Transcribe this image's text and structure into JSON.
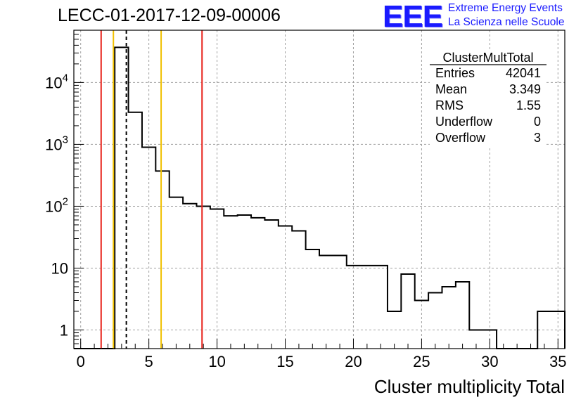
{
  "header": {
    "run_title": "LECC-01-2017-12-09-00006",
    "logo": "EEE",
    "logo_line1": "Extreme Energy Events",
    "logo_line2": "La Scienza nelle Scuole",
    "logo_color": "#1a1aff"
  },
  "stats_box": {
    "title": "ClusterMultTotal",
    "rows": [
      {
        "label": "Entries",
        "value": "42041"
      },
      {
        "label": "Mean",
        "value": "3.349"
      },
      {
        "label": "RMS",
        "value": "1.55"
      },
      {
        "label": "Underflow",
        "value": "0"
      },
      {
        "label": "Overflow",
        "value": "3"
      }
    ]
  },
  "chart_data": {
    "type": "bar",
    "histogram": true,
    "xlabel": "Cluster multiplicity Total",
    "ylabel": "",
    "xlim": [
      -0.5,
      35.5
    ],
    "ylim": [
      0.5,
      70000
    ],
    "log_y": true,
    "grid": true,
    "bin_edges_start": -0.5,
    "bin_width": 1,
    "values": [
      0,
      0,
      0,
      37000,
      3300,
      900,
      370,
      140,
      110,
      100,
      90,
      70,
      72,
      65,
      60,
      48,
      40,
      20,
      16,
      16,
      11,
      11,
      11,
      2,
      8,
      3,
      4,
      5,
      6,
      1,
      1,
      0,
      0,
      0,
      2,
      2
    ],
    "x_ticks": [
      0,
      5,
      10,
      15,
      20,
      25,
      30,
      35
    ],
    "x_tick_labels": [
      "0",
      "5",
      "10",
      "15",
      "20",
      "25",
      "30",
      "35"
    ],
    "y_ticks": [
      1,
      10,
      100,
      1000,
      10000
    ],
    "y_tick_labels": [
      {
        "base": "1",
        "exp": ""
      },
      {
        "base": "10",
        "exp": ""
      },
      {
        "base": "10",
        "exp": "2"
      },
      {
        "base": "10",
        "exp": "3"
      },
      {
        "base": "10",
        "exp": "4"
      }
    ],
    "vertical_lines": [
      {
        "x": 1.5,
        "color": "#e8231c",
        "style": "solid"
      },
      {
        "x": 2.4,
        "color": "#f0c000",
        "style": "solid"
      },
      {
        "x": 3.349,
        "color": "#000000",
        "style": "dashed"
      },
      {
        "x": 5.9,
        "color": "#f0c000",
        "style": "solid"
      },
      {
        "x": 8.9,
        "color": "#e8231c",
        "style": "solid"
      }
    ]
  }
}
